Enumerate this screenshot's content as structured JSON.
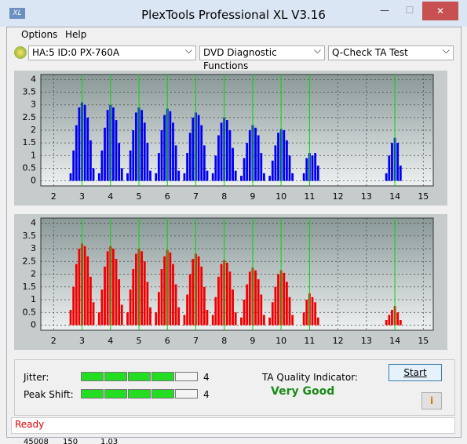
{
  "window": {
    "title": "PlexTools Professional XL V3.16"
  },
  "menu": [
    "Options",
    "Help"
  ],
  "toolbar": [
    "HA:5 ID:0  PX-760A",
    "DVD Diagnostic Functions",
    "Q-Check TA Test"
  ],
  "chart_data": [
    {
      "type": "bar",
      "color": "#0000ee",
      "xlim": [
        1.55,
        15.35
      ],
      "ylim": [
        -0.2,
        4.2
      ],
      "xticks": [
        2,
        3,
        4,
        5,
        6,
        7,
        8,
        9,
        10,
        11,
        12,
        13,
        14,
        15
      ],
      "yticks": [
        0,
        0.5,
        1,
        1.5,
        2,
        2.5,
        3,
        3.5,
        4
      ],
      "grid": true,
      "reference_lines": [
        3,
        4,
        5,
        6,
        7,
        8,
        9,
        10,
        11,
        14
      ],
      "reference_color": "#00dd00",
      "x": [
        2.6,
        2.7,
        2.8,
        2.9,
        3,
        3.1,
        3.2,
        3.3,
        3.4,
        3.6,
        3.7,
        3.8,
        3.9,
        4,
        4.1,
        4.2,
        4.3,
        4.4,
        4.6,
        4.7,
        4.8,
        4.9,
        5,
        5.1,
        5.2,
        5.3,
        5.4,
        5.6,
        5.7,
        5.8,
        5.9,
        6,
        6.1,
        6.2,
        6.3,
        6.4,
        6.6,
        6.7,
        6.8,
        6.9,
        7,
        7.1,
        7.2,
        7.3,
        7.4,
        7.6,
        7.7,
        7.8,
        7.9,
        8,
        8.1,
        8.2,
        8.3,
        8.4,
        8.6,
        8.7,
        8.8,
        8.9,
        9,
        9.1,
        9.2,
        9.3,
        9.4,
        9.6,
        9.7,
        9.8,
        9.9,
        10,
        10.1,
        10.2,
        10.3,
        10.4,
        10.8,
        10.9,
        11,
        11.1,
        11.2,
        11.3,
        13.7,
        13.8,
        13.9,
        14,
        14.1,
        14.2
      ],
      "values": [
        0.3,
        1.2,
        2.2,
        2.9,
        3.1,
        3.0,
        2.5,
        1.6,
        0.5,
        0.3,
        1.2,
        2.1,
        2.8,
        3.0,
        2.9,
        2.4,
        1.5,
        0.5,
        0.3,
        1.2,
        2.0,
        2.7,
        2.9,
        2.8,
        2.3,
        1.5,
        0.4,
        0.3,
        1.1,
        2.0,
        2.6,
        2.85,
        2.75,
        2.3,
        1.4,
        0.4,
        0.3,
        1.1,
        1.9,
        2.5,
        2.7,
        2.6,
        2.2,
        1.4,
        0.4,
        0.3,
        1.0,
        1.8,
        2.3,
        2.5,
        2.4,
        2.0,
        1.3,
        0.4,
        0.2,
        0.9,
        1.5,
        2.0,
        2.2,
        2.1,
        1.8,
        1.1,
        0.3,
        0.2,
        0.8,
        1.4,
        1.9,
        2.05,
        2.0,
        1.6,
        1.0,
        0.3,
        0.3,
        0.9,
        1.1,
        1.0,
        1.1,
        0.6,
        0.3,
        1.0,
        1.5,
        1.7,
        1.5,
        0.6
      ]
    },
    {
      "type": "bar",
      "color": "#ee0000",
      "xlim": [
        1.55,
        15.35
      ],
      "ylim": [
        -0.2,
        4.2
      ],
      "xticks": [
        2,
        3,
        4,
        5,
        6,
        7,
        8,
        9,
        10,
        11,
        12,
        13,
        14,
        15
      ],
      "yticks": [
        0,
        0.5,
        1,
        1.5,
        2,
        2.5,
        3,
        3.5,
        4
      ],
      "grid": true,
      "reference_lines": [
        3,
        4,
        5,
        6,
        7,
        8,
        9,
        10,
        11,
        14
      ],
      "reference_color": "#00dd00",
      "x": [
        2.6,
        2.7,
        2.8,
        2.9,
        3,
        3.1,
        3.2,
        3.3,
        3.4,
        3.6,
        3.7,
        3.8,
        3.9,
        4,
        4.1,
        4.2,
        4.3,
        4.4,
        4.6,
        4.7,
        4.8,
        4.9,
        5,
        5.1,
        5.2,
        5.3,
        5.4,
        5.6,
        5.7,
        5.8,
        5.9,
        6,
        6.1,
        6.2,
        6.3,
        6.4,
        6.6,
        6.7,
        6.8,
        6.9,
        7,
        7.1,
        7.2,
        7.3,
        7.4,
        7.6,
        7.7,
        7.8,
        7.9,
        8,
        8.1,
        8.2,
        8.3,
        8.4,
        8.6,
        8.7,
        8.8,
        8.9,
        9,
        9.1,
        9.2,
        9.3,
        9.4,
        9.6,
        9.7,
        9.8,
        9.9,
        10,
        10.1,
        10.2,
        10.3,
        10.4,
        10.8,
        10.9,
        11,
        11.1,
        11.2,
        11.3,
        13.7,
        13.8,
        13.9,
        14,
        14.1,
        14.2
      ],
      "values": [
        0.6,
        1.5,
        2.4,
        3.0,
        3.2,
        3.1,
        2.7,
        1.9,
        0.9,
        0.5,
        1.4,
        2.3,
        2.9,
        3.1,
        3.0,
        2.6,
        1.8,
        0.8,
        0.5,
        1.4,
        2.2,
        2.8,
        3.0,
        2.9,
        2.5,
        1.7,
        0.7,
        0.5,
        1.3,
        2.2,
        2.7,
        2.95,
        2.85,
        2.4,
        1.6,
        0.7,
        0.4,
        1.2,
        2.0,
        2.6,
        2.8,
        2.7,
        2.3,
        1.5,
        0.6,
        0.4,
        1.1,
        1.9,
        2.4,
        2.55,
        2.45,
        2.1,
        1.4,
        0.5,
        0.3,
        1.0,
        1.6,
        2.1,
        2.25,
        2.15,
        1.8,
        1.2,
        0.4,
        0.3,
        0.9,
        1.5,
        2.0,
        2.15,
        2.05,
        1.7,
        1.1,
        0.4,
        0.5,
        1.0,
        1.25,
        1.1,
        0.9,
        0.3,
        0.2,
        0.4,
        0.6,
        0.75,
        0.5,
        0.2
      ]
    }
  ],
  "indicators": [
    {
      "label": "Jitter:",
      "value": 4,
      "segments": 5
    },
    {
      "label": "Peak Shift:",
      "value": 4,
      "segments": 5
    }
  ],
  "quality": {
    "label": "TA Quality Indicator:",
    "value": "Very Good"
  },
  "button": "Start",
  "status": "Ready",
  "background_text": [
    "45008",
    "150",
    "1.03"
  ]
}
